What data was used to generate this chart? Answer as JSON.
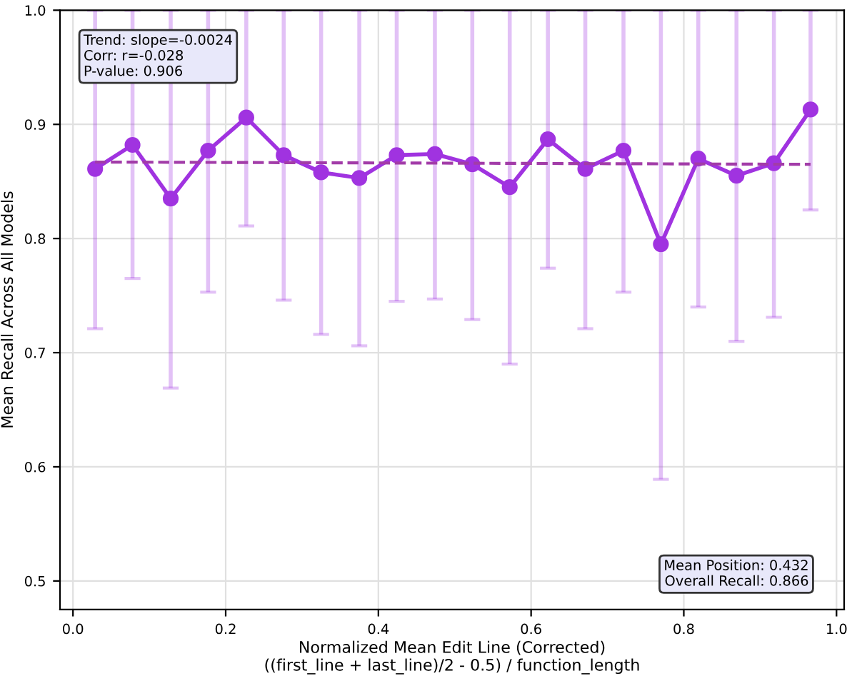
{
  "chart_data": {
    "type": "line",
    "xlabel": "Normalized Mean Edit Line (Corrected)\n((first_line + last_line)/2 - 0.5) / function_length",
    "ylabel": "Mean Recall Across All Models",
    "xlim": [
      -0.017,
      1.01
    ],
    "ylim": [
      0.475,
      1.0
    ],
    "xticks": [
      {
        "value": 0,
        "label": "0.0"
      },
      0.2,
      0.4,
      0.6,
      0.8,
      {
        "value": 1,
        "label": "1.0"
      }
    ],
    "yticks": [
      0.5,
      0.6,
      0.7,
      0.8,
      0.9,
      {
        "value": 1,
        "label": "1.0"
      }
    ],
    "grid": true,
    "marker": "circle",
    "line_style": "solid",
    "series": [
      {
        "color": "#a033e0",
        "x": [
          0.029,
          0.078,
          0.128,
          0.177,
          0.227,
          0.276,
          0.325,
          0.375,
          0.424,
          0.474,
          0.523,
          0.572,
          0.622,
          0.671,
          0.721,
          0.77,
          0.819,
          0.869,
          0.918,
          0.966
        ],
        "values": [
          0.861,
          0.882,
          0.835,
          0.877,
          0.906,
          0.873,
          0.858,
          0.853,
          0.873,
          0.874,
          0.865,
          0.845,
          0.887,
          0.861,
          0.877,
          0.795,
          0.87,
          0.855,
          0.866,
          0.913
        ],
        "errors": [
          [
            0.721,
            1.0
          ],
          [
            0.765,
            1.0
          ],
          [
            0.669,
            1.0
          ],
          [
            0.753,
            1.0
          ],
          [
            0.811,
            1.0
          ],
          [
            0.746,
            1.0
          ],
          [
            0.716,
            1.0
          ],
          [
            0.706,
            1.0
          ],
          [
            0.745,
            1.0
          ],
          [
            0.747,
            1.0
          ],
          [
            0.729,
            1.0
          ],
          [
            0.69,
            1.0
          ],
          [
            0.774,
            1.0
          ],
          [
            0.721,
            1.0
          ],
          [
            0.753,
            1.0
          ],
          [
            0.589,
            1.0
          ],
          [
            0.74,
            1.0
          ],
          [
            0.71,
            1.0
          ],
          [
            0.731,
            1.0
          ],
          [
            0.825,
            1.0
          ]
        ]
      },
      {
        "type": "line",
        "color": "#a23ca8",
        "line_style": "dashed",
        "marker": "none",
        "x": [
          0.029,
          0.966
        ],
        "values": [
          0.867,
          0.865
        ]
      }
    ],
    "annotations": [
      "Trend: slope=-0.0024\nCorr: r=-0.028\nP-value: 0.906",
      "Mean Position: 0.432\nOverall Recall: 0.866"
    ]
  }
}
